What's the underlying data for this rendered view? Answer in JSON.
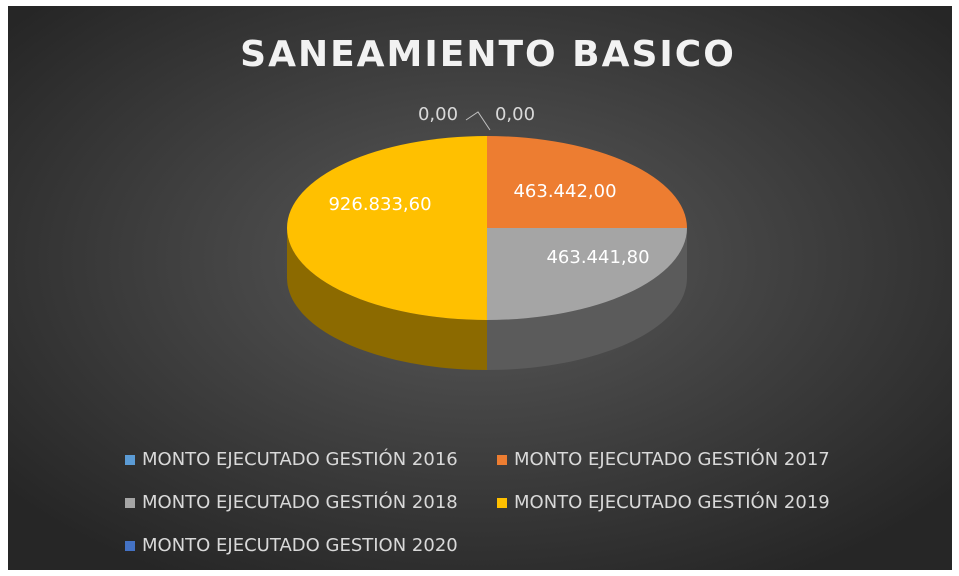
{
  "chart_data": {
    "type": "pie3d",
    "title": "SANEAMIENTO BASICO",
    "categories": [
      "MONTO EJECUTADO GESTIÓN 2016",
      "MONTO EJECUTADO GESTIÓN 2017",
      "MONTO EJECUTADO GESTIÓN 2018",
      "MONTO EJECUTADO GESTIÓN 2019",
      "MONTO EJECUTADO GESTION 2020"
    ],
    "values": [
      0,
      463442.0,
      463441.8,
      926833.6,
      0
    ],
    "value_labels": [
      "0,00",
      "463.442,00",
      "463.441,80",
      "926.833,60",
      "0,00"
    ],
    "colors": [
      "#5b9bd5",
      "#ed7d31",
      "#a5a5a5",
      "#ffc000",
      "#4472c4"
    ],
    "legend": "bottom"
  }
}
